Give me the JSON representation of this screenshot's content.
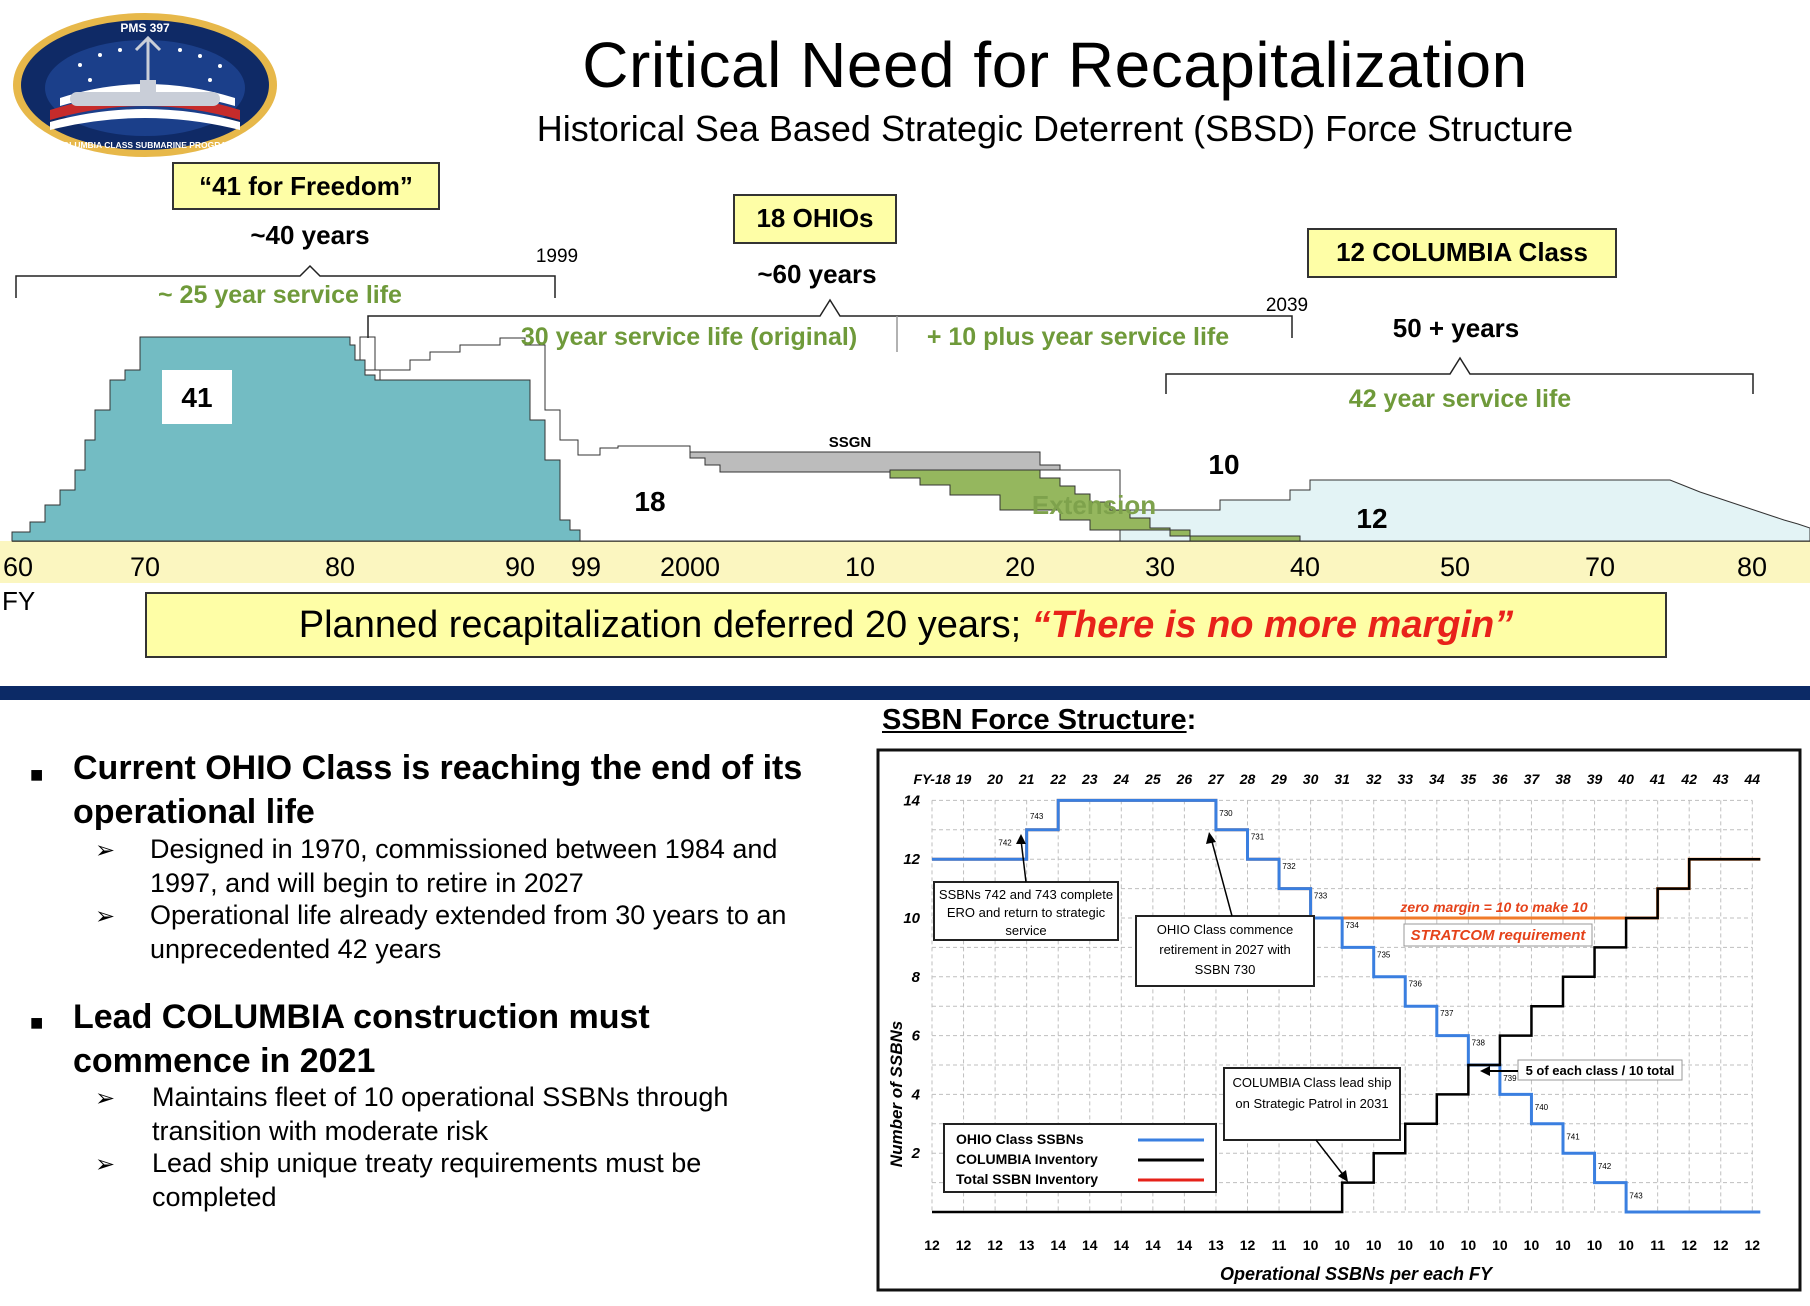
{
  "header": {
    "title": "Critical Need for Recapitalization",
    "subtitle": "Historical Sea Based Strategic Deterrent (SBSD) Force Structure",
    "logo": {
      "top_text": "PMS 397",
      "bottom_text": "COLUMBIA CLASS SUBMARINE PROGRAM"
    }
  },
  "timeline": {
    "callouts": {
      "freedom": "“41 for Freedom”",
      "ohios": "18 OHIOs",
      "columbia": "12 COLUMBIA Class"
    },
    "spans": {
      "forty_years": "~40 years",
      "sixty_years": "~60 years",
      "fifty_years": "50 + years"
    },
    "years": {
      "y1999": "1999",
      "y2039": "2039"
    },
    "service_life": {
      "s25": "~ 25 year service life",
      "s30": "30 year service life (original)",
      "s10": "+ 10 plus year service life",
      "s42": "42 year service life"
    },
    "labels": {
      "n41": "41",
      "n18": "18",
      "ssgn": "SSGN",
      "n10": "10",
      "extension": "Extension",
      "n12": "12"
    },
    "axis_ticks": [
      "60",
      "70",
      "80",
      "90",
      "99",
      "2000",
      "10",
      "20",
      "30",
      "40",
      "50",
      "70",
      "80"
    ],
    "axis_label": "FY",
    "recap_main": "Planned recapitalization deferred 20 years; ",
    "recap_emph": "“There is no more margin”"
  },
  "bullets": [
    {
      "text": "Current OHIO Class is reaching the end of its operational life",
      "subs": [
        "Designed in 1970, commissioned between 1984 and 1997, and will begin to retire in 2027",
        "Operational life already extended from 30 years to an unprecedented 42 years"
      ]
    },
    {
      "text": "Lead COLUMBIA construction must commence in 2021",
      "subs": [
        "Maintains fleet of 10 operational SSBNs through transition with moderate risk",
        "Lead ship unique treaty requirements must be completed"
      ]
    }
  ],
  "chart_data": {
    "type": "line",
    "heading": "SSBN Force Structure",
    "heading_colon": ":",
    "x": [
      "FY-18",
      "19",
      "20",
      "21",
      "22",
      "23",
      "24",
      "25",
      "26",
      "27",
      "28",
      "29",
      "30",
      "31",
      "32",
      "33",
      "34",
      "35",
      "36",
      "37",
      "38",
      "39",
      "40",
      "41",
      "42",
      "43",
      "44"
    ],
    "xlabel": "Operational  SSBNs per each FY",
    "ylabel": "Number of SSBNs",
    "ylim": [
      0,
      14
    ],
    "yticks": [
      "14",
      "12",
      "10",
      "8",
      "6",
      "4",
      "2"
    ],
    "bottom_row": [
      "12",
      "12",
      "12",
      "13",
      "14",
      "14",
      "14",
      "14",
      "14",
      "13",
      "12",
      "11",
      "10",
      "10",
      "10",
      "10",
      "10",
      "10",
      "10",
      "10",
      "10",
      "10",
      "10",
      "11",
      "12",
      "12",
      "12"
    ],
    "series": [
      {
        "name": "OHIO Class SSBNs",
        "color": "#3a7fe0",
        "values": [
          12,
          12,
          12,
          13,
          14,
          14,
          14,
          14,
          14,
          13,
          12,
          11,
          10,
          9,
          8,
          7,
          6,
          5,
          4,
          3,
          2,
          1,
          0,
          0,
          0,
          0,
          0
        ]
      },
      {
        "name": "COLUMBIA Inventory",
        "color": "#000000",
        "values": [
          0,
          0,
          0,
          0,
          0,
          0,
          0,
          0,
          0,
          0,
          0,
          0,
          0,
          1,
          2,
          3,
          4,
          5,
          6,
          7,
          8,
          9,
          10,
          11,
          12,
          12,
          12
        ]
      },
      {
        "name": "Total SSBN Inventory",
        "color": "#f07b2a",
        "values": [
          12,
          12,
          12,
          13,
          14,
          14,
          14,
          14,
          14,
          13,
          12,
          11,
          10,
          10,
          10,
          10,
          10,
          10,
          10,
          10,
          10,
          10,
          10,
          11,
          12,
          12,
          12
        ]
      }
    ],
    "hull_labels": [
      "742",
      "743",
      "730",
      "731",
      "732",
      "733",
      "734",
      "735",
      "736",
      "737",
      "738",
      "739",
      "740",
      "741",
      "742",
      "743"
    ],
    "annotations": {
      "zero_margin": "zero margin = 10 to make 10",
      "stratcom": "STRATCOM requirement",
      "ero": "SSBNs 742 and 743 complete ERO and return to strategic service",
      "retire": "OHIO Class commence retirement in 2027 with SSBN 730",
      "lead": "COLUMBIA Class lead ship on Strategic Patrol in 2031",
      "five_each": "5 of each class / 10 total"
    },
    "legend_placement": "bottom-left",
    "grid": true
  }
}
